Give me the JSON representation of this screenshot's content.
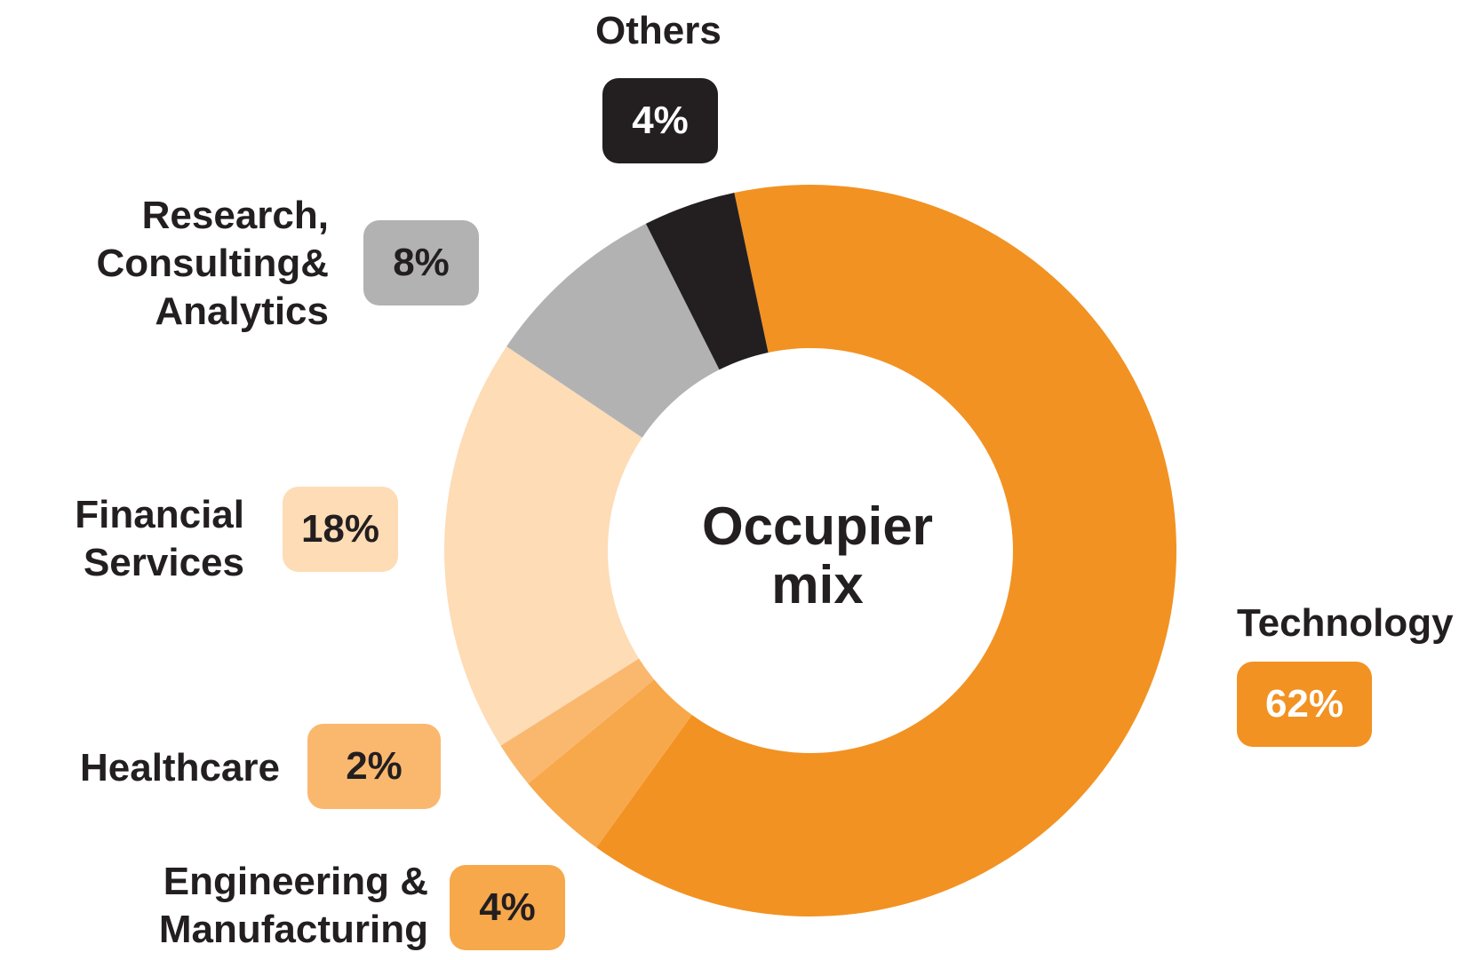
{
  "chart_data": {
    "type": "pie",
    "center_label_lines": [
      "Occupier",
      "mix"
    ],
    "slices": [
      {
        "label_lines": [
          "Technology"
        ],
        "value": 62,
        "value_label": "62%",
        "color": "#f29222",
        "badge_color": "#f29222",
        "badge_text_color": "#ffffff"
      },
      {
        "label_lines": [
          "Engineering &",
          "Manufacturing"
        ],
        "value": 4,
        "value_label": "4%",
        "color": "#f7a84b",
        "badge_color": "#f7a84b",
        "badge_text_color": "#231f20"
      },
      {
        "label_lines": [
          "Healthcare"
        ],
        "value": 2,
        "value_label": "2%",
        "color": "#fab86f",
        "badge_color": "#fab86f",
        "badge_text_color": "#231f20"
      },
      {
        "label_lines": [
          "Financial",
          "Services"
        ],
        "value": 18,
        "value_label": "18%",
        "color": "#fddcb6",
        "badge_color": "#fddcb6",
        "badge_text_color": "#231f20"
      },
      {
        "label_lines": [
          "Research,",
          "Consulting&",
          "Analytics"
        ],
        "value": 8,
        "value_label": "8%",
        "color": "#b2b2b2",
        "badge_color": "#b2b2b2",
        "badge_text_color": "#231f20"
      },
      {
        "label_lines": [
          "Others"
        ],
        "value": 4,
        "value_label": "4%",
        "color": "#231f20",
        "badge_color": "#231f20",
        "badge_text_color": "#ffffff"
      }
    ]
  }
}
